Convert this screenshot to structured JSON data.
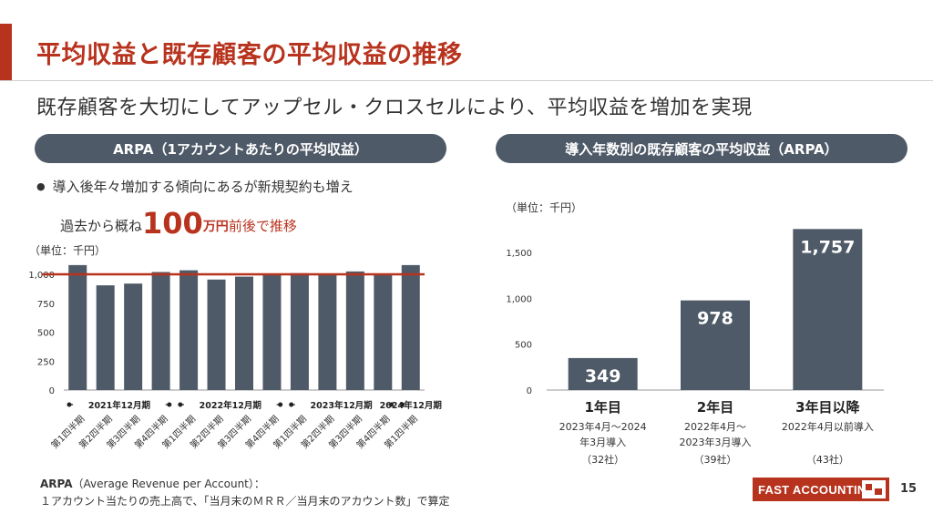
{
  "header": {
    "title": "平均収益と既存顧客の平均収益の推移",
    "subtitle": "既存顧客を大切にしてアップセル・クロスセルにより、平均収益を増加を実現"
  },
  "left_panel": {
    "heading": "ARPA（1アカウントあたりの平均収益）",
    "bullet_line1": "導入後年々増加する傾向にあるが新規契約も増え",
    "bullet_line2_prefix": "過去から概ね",
    "bullet_big_number": "100",
    "bullet_big_unit": "万円",
    "bullet_line2_suffix": "前後で推移",
    "unit": "（単位：千円）"
  },
  "right_panel": {
    "heading": "導入年数別の既存顧客の平均収益（ARPA）",
    "unit": "（単位：千円）"
  },
  "footnote": {
    "term": "ARPA",
    "definition": "（Average Revenue per Account）：",
    "line2": "１アカウント当たりの売上高で、「当月末のＭＲＲ／当月末のアカウント数」で算定"
  },
  "logo_text": "FAST ACCOUNTING",
  "page_number": "15",
  "colors": {
    "accent": "#b8331e",
    "bar": "#4f5a68",
    "reference_line": "#b8331e"
  },
  "chart_data": [
    {
      "type": "bar",
      "title": "ARPA（1アカウントあたりの平均収益）",
      "categories": [
        "第1四半期",
        "第2四半期",
        "第3四半期",
        "第4四半期",
        "第1四半期",
        "第2四半期",
        "第3四半期",
        "第4四半期",
        "第1四半期",
        "第2四半期",
        "第3四半期",
        "第4四半期",
        "第1四半期"
      ],
      "period_groups": [
        {
          "label": "2021年12月期",
          "count": 4
        },
        {
          "label": "2022年12月期",
          "count": 4
        },
        {
          "label": "2023年12月期",
          "count": 4
        },
        {
          "label": "2024年12月期",
          "count": 1
        }
      ],
      "values": [
        1080,
        905,
        920,
        1020,
        1035,
        955,
        980,
        1000,
        1010,
        1000,
        1025,
        1000,
        1080
      ],
      "reference_line": 1000,
      "ylim": [
        0,
        1150
      ],
      "yticks": [
        0,
        250,
        500,
        750,
        1000
      ],
      "ytick_labels": [
        "0",
        "250",
        "500",
        "750",
        "1,000"
      ],
      "grid": false
    },
    {
      "type": "bar",
      "title": "導入年数別の既存顧客の平均収益（ARPA）",
      "categories": [
        "1年目",
        "2年目",
        "3年目以降"
      ],
      "category_details": [
        [
          "2023年4月～2024",
          "年3月導入",
          "（32社）"
        ],
        [
          "2022年4月～",
          "2023年3月導入",
          "（39社）"
        ],
        [
          "2022年4月以前導入",
          "",
          "（43社）"
        ]
      ],
      "values": [
        349,
        978,
        1757
      ],
      "data_labels": [
        "349",
        "978",
        "1,757"
      ],
      "ylim": [
        0,
        1800
      ],
      "yticks": [
        0,
        500,
        1000,
        1500
      ],
      "ytick_labels": [
        "0",
        "500",
        "1,000",
        "1,500"
      ],
      "grid": false
    }
  ]
}
